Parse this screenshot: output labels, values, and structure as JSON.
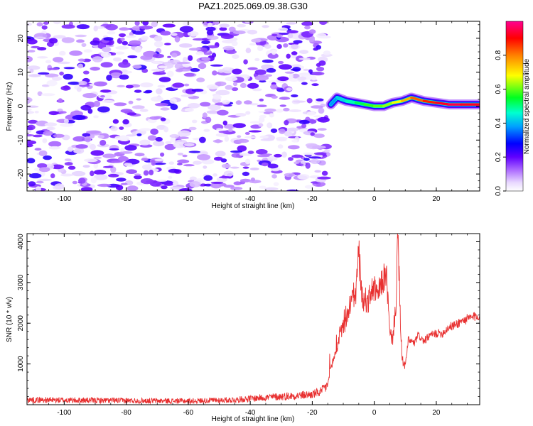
{
  "title": "PAZ1.2025.069.09.38.G30",
  "chart_data": [
    {
      "type": "heatmap",
      "xlabel": "Height of straight line (km)",
      "ylabel": "Frequency (Hz)",
      "xlim": [
        -112,
        34
      ],
      "ylim": [
        -25,
        25
      ],
      "xticks": [
        -100,
        -80,
        -60,
        -40,
        -20,
        0,
        20
      ],
      "yticks": [
        -20,
        -10,
        0,
        10,
        20
      ],
      "colorbar": {
        "label": "Normalized spectral amplitude",
        "range": [
          0,
          1
        ],
        "ticks": [
          0.0,
          0.2,
          0.4,
          0.6,
          0.8
        ],
        "colors": [
          "#ffffff",
          "#b070ff",
          "#5000ff",
          "#0000ff",
          "#00e0ff",
          "#00ff40",
          "#ffff00",
          "#ff8000",
          "#ff0000",
          "#ff0090"
        ]
      },
      "noise_region": {
        "x_range": [
          -112,
          -15
        ],
        "amplitude_range": [
          0.02,
          0.25
        ]
      },
      "signal_track": [
        {
          "x": -14,
          "freq": 0.5,
          "amp": 0.35
        },
        {
          "x": -12,
          "freq": 2.5,
          "amp": 0.4
        },
        {
          "x": -9,
          "freq": 1.5,
          "amp": 0.45
        },
        {
          "x": -6,
          "freq": 1.0,
          "amp": 0.5
        },
        {
          "x": -3,
          "freq": 0.5,
          "amp": 0.55
        },
        {
          "x": 0,
          "freq": 0.0,
          "amp": 0.6
        },
        {
          "x": 3,
          "freq": 0.0,
          "amp": 0.6
        },
        {
          "x": 6,
          "freq": 1.0,
          "amp": 0.65
        },
        {
          "x": 9,
          "freq": 1.5,
          "amp": 0.7
        },
        {
          "x": 12,
          "freq": 2.5,
          "amp": 0.8
        },
        {
          "x": 16,
          "freq": 1.5,
          "amp": 0.85
        },
        {
          "x": 20,
          "freq": 1.0,
          "amp": 0.9
        },
        {
          "x": 24,
          "freq": 0.5,
          "amp": 0.95
        },
        {
          "x": 28,
          "freq": 0.5,
          "amp": 0.95
        },
        {
          "x": 34,
          "freq": 0.5,
          "amp": 0.9
        }
      ]
    },
    {
      "type": "line",
      "xlabel": "Height of straight line (km)",
      "ylabel": "SNR (10 * v/v)",
      "xlim": [
        -112,
        34
      ],
      "ylim": [
        0,
        4200
      ],
      "xticks": [
        -100,
        -80,
        -60,
        -40,
        -20,
        0,
        20
      ],
      "yticks": [
        1000,
        2000,
        3000,
        4000
      ],
      "color": "#e83030",
      "series": [
        {
          "x": [
            -112,
            -100,
            -80,
            -60,
            -45,
            -40,
            -35,
            -30,
            -25,
            -20,
            -17,
            -15,
            -14,
            -13,
            -12,
            -11,
            -10,
            -9,
            -8,
            -7,
            -6,
            -5,
            -4,
            -3,
            -2,
            -1,
            0,
            1,
            2,
            3,
            4,
            5,
            6,
            7,
            7.5,
            8,
            8.5,
            9,
            10,
            11,
            12,
            13,
            14,
            15,
            16,
            18,
            20,
            22,
            24,
            26,
            28,
            30,
            32,
            34
          ],
          "y": [
            120,
            110,
            100,
            90,
            120,
            150,
            180,
            200,
            220,
            250,
            320,
            500,
            900,
            1150,
            1400,
            1650,
            1900,
            2100,
            2400,
            2700,
            2650,
            3800,
            2600,
            2600,
            2500,
            2800,
            2850,
            2650,
            2900,
            3100,
            3150,
            1700,
            1650,
            2500,
            4150,
            3200,
            1800,
            1100,
            950,
            1600,
            1550,
            1500,
            1700,
            1650,
            1550,
            1700,
            1750,
            1750,
            1900,
            1950,
            2050,
            2100,
            2150,
            2200
          ]
        }
      ]
    }
  ]
}
